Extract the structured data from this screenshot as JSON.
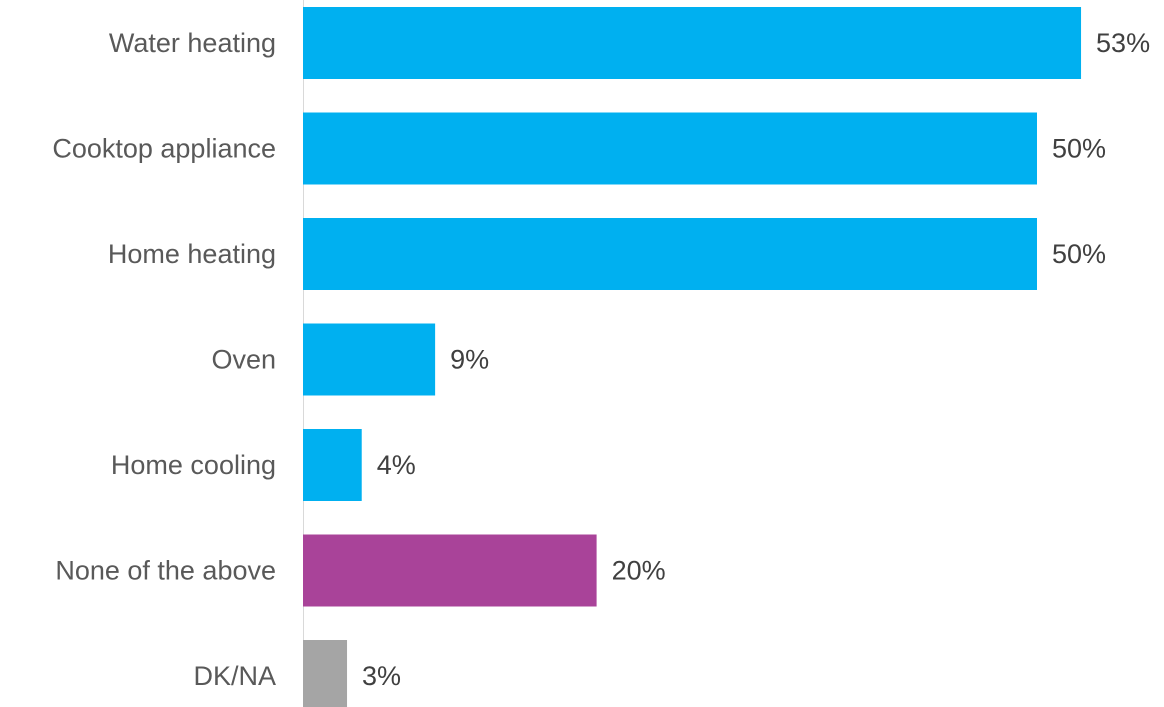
{
  "chart_data": {
    "type": "bar",
    "orientation": "horizontal",
    "categories": [
      "Water heating",
      "Cooktop appliance",
      "Home heating",
      "Oven",
      "Home cooling",
      "None of the above",
      "DK/NA"
    ],
    "values": [
      53,
      50,
      50,
      9,
      4,
      20,
      3
    ],
    "value_labels": [
      "53%",
      "50%",
      "50%",
      "9%",
      "4%",
      "20%",
      "3%"
    ],
    "colors": [
      "#00B0F0",
      "#00B0F0",
      "#00B0F0",
      "#00B0F0",
      "#00B0F0",
      "#A94399",
      "#A5A5A5"
    ],
    "unit": "%",
    "title": "",
    "xlabel": "",
    "ylabel": "",
    "grid": false,
    "legend": "none"
  }
}
